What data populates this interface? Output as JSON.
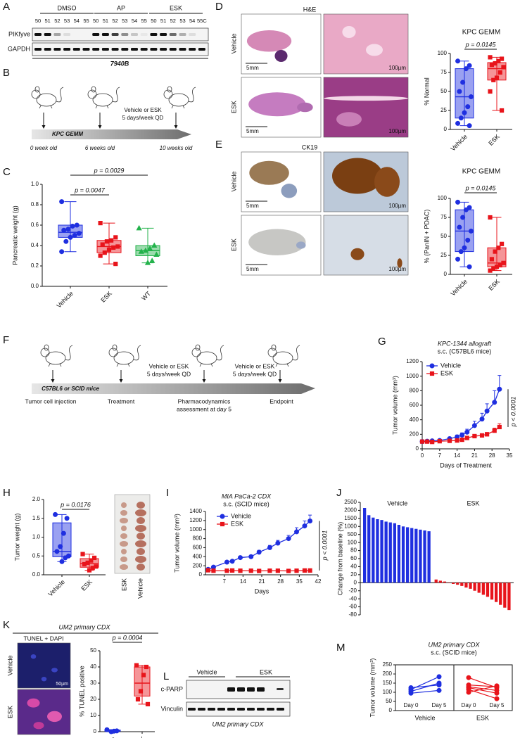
{
  "figure": {
    "A": {
      "letter": "A",
      "groups": [
        "DMSO",
        "AP",
        "ESK"
      ],
      "lanes": [
        "50",
        "51",
        "52",
        "53",
        "54",
        "55",
        "50",
        "51",
        "52",
        "53",
        "54",
        "55",
        "50",
        "51",
        "52",
        "53",
        "54",
        "55C"
      ],
      "proteins": [
        "PIKfyve",
        "GAPDH"
      ],
      "cell_line": "7940B"
    },
    "B": {
      "letter": "B",
      "model": "KPC GEMM",
      "treatment": [
        "Vehicle or ESK",
        "5 days/week QD"
      ],
      "timepoints": [
        "0 week old",
        "6 weeks old",
        "10 weeks old"
      ]
    },
    "C": {
      "letter": "C",
      "chart": {
        "type": "box",
        "ylabel": "Pancreatic weight (g)",
        "ylim": [
          0,
          1.0
        ],
        "yticks": [
          {
            "value": 0,
            "label": "0.0"
          },
          0.2,
          0.4,
          0.6,
          0.8,
          {
            "value": 1.0,
            "label": "1.0"
          }
        ],
        "categories": [
          "Vehicle",
          "ESK",
          "WT"
        ],
        "series": [
          {
            "color": "#1f2fe0",
            "marker": "circle",
            "box": [
              0.34,
              0.48,
              0.53,
              0.6,
              0.83
            ],
            "points": [
              0.83,
              0.6,
              0.59,
              0.56,
              0.55,
              0.52,
              0.5,
              0.48,
              0.44,
              0.34
            ]
          },
          {
            "color": "#e8141b",
            "marker": "square",
            "box": [
              0.22,
              0.33,
              0.39,
              0.45,
              0.62
            ],
            "points": [
              0.62,
              0.48,
              0.45,
              0.44,
              0.41,
              0.39,
              0.38,
              0.36,
              0.33,
              0.3,
              0.22
            ]
          },
          {
            "color": "#23b24b",
            "marker": "triangle",
            "box": [
              0.23,
              0.3,
              0.35,
              0.4,
              0.57
            ],
            "points": [
              0.57,
              0.4,
              0.37,
              0.35,
              0.34,
              0.31,
              0.25,
              0.23
            ]
          }
        ],
        "annotations": [
          "p = 0.0029",
          "p = 0.0047"
        ]
      }
    },
    "D": {
      "letter": "D",
      "stain": "H&E",
      "rows": [
        "Vehicle",
        "ESK"
      ],
      "scale_low": "5mm",
      "scale_high": "100µm",
      "chart": {
        "type": "box",
        "title": "KPC GEMM",
        "ylabel": "% Normal",
        "ylim": [
          0,
          100
        ],
        "yticks": [
          0,
          25,
          50,
          75,
          100
        ],
        "categories": [
          "Vehicle",
          "ESK"
        ],
        "series": [
          {
            "color": "#1f2fe0",
            "marker": "circle",
            "box": [
              5,
              15,
              43,
              80,
              90
            ],
            "points": [
              90,
              84,
              80,
              62,
              50,
              43,
              30,
              22,
              15,
              8,
              5
            ]
          },
          {
            "color": "#e8141b",
            "marker": "square",
            "box": [
              25,
              65,
              80,
              88,
              95
            ],
            "points": [
              95,
              93,
              90,
              87,
              85,
              82,
              75,
              68,
              65,
              50,
              25
            ]
          }
        ],
        "annotations": [
          "p = 0.0145"
        ]
      }
    },
    "E": {
      "letter": "E",
      "stain": "CK19",
      "rows": [
        "Vehicle",
        "ESK"
      ],
      "scale_low": "5mm",
      "scale_high": "100µm",
      "chart": {
        "type": "box",
        "title": "KPC GEMM",
        "ylabel": "% (PanIN + PDAC)",
        "ylim": [
          0,
          100
        ],
        "yticks": [
          0,
          25,
          50,
          75,
          100
        ],
        "categories": [
          "Vehicle",
          "ESK"
        ],
        "series": [
          {
            "color": "#1f2fe0",
            "marker": "circle",
            "box": [
              10,
              30,
              57,
              85,
              95
            ],
            "points": [
              95,
              88,
              85,
              75,
              62,
              57,
              45,
              35,
              30,
              20,
              10
            ]
          },
          {
            "color": "#e8141b",
            "marker": "square",
            "box": [
              5,
              10,
              15,
              35,
              75
            ],
            "points": [
              75,
              40,
              35,
              30,
              20,
              15,
              12,
              10,
              8,
              5
            ]
          }
        ],
        "annotations": [
          "p = 0.0145"
        ]
      }
    },
    "F": {
      "letter": "F",
      "host": "C57BL6 or SCID mice",
      "treatment": [
        "Vehicle or ESK",
        "5 days/week QD"
      ],
      "events": [
        "Tumor cell injection",
        "Treatment",
        "Pharmacodynamics",
        "assessment at day 5",
        "Endpoint"
      ]
    },
    "G": {
      "letter": "G",
      "chart": {
        "type": "line",
        "title": [
          "KPC-1344 allograft",
          "s.c. (C57BL6 mice)"
        ],
        "xlabel": "Days of Treatment",
        "ylabel": "Tumor volume (mm³)",
        "xlim": [
          0,
          35
        ],
        "xticks": [
          0,
          7,
          14,
          21,
          28,
          35
        ],
        "ylim": [
          0,
          1200
        ],
        "yticks": [
          0,
          200,
          400,
          600,
          800,
          1000,
          1200
        ],
        "series": [
          {
            "name": "Vehicle",
            "color": "#1f2fe0",
            "marker": "circle",
            "x": [
              0,
              2,
              4,
              7,
              11,
              14,
              16,
              18,
              21,
              24,
              26,
              29,
              31
            ],
            "values": [
              100,
              105,
              110,
              115,
              140,
              165,
              190,
              230,
              320,
              410,
              520,
              640,
              820
            ],
            "errors": [
              10,
              10,
              10,
              15,
              20,
              25,
              30,
              40,
              60,
              80,
              100,
              160,
              190
            ]
          },
          {
            "name": "ESK",
            "color": "#e8141b",
            "marker": "square",
            "x": [
              0,
              2,
              4,
              7,
              11,
              14,
              16,
              18,
              21,
              24,
              26,
              29,
              31
            ],
            "values": [
              100,
              100,
              95,
              105,
              110,
              115,
              125,
              150,
              175,
              185,
              200,
              250,
              300
            ],
            "errors": [
              8,
              8,
              8,
              10,
              10,
              12,
              12,
              15,
              20,
              20,
              25,
              35,
              45
            ]
          }
        ],
        "annotation": "p < 0.0001"
      }
    },
    "H": {
      "letter": "H",
      "photo_labels": [
        "ESK",
        "Vehicle"
      ],
      "chart": {
        "type": "box",
        "ylabel": "Tumor weight (g)",
        "ylim": [
          0,
          2.0
        ],
        "yticks": [
          {
            "value": 0,
            "label": "0.0"
          },
          0.5,
          {
            "value": 1.0,
            "label": "1.0"
          },
          1.5,
          {
            "value": 2.0,
            "label": "2.0"
          }
        ],
        "categories": [
          "Vehicle",
          "ESK"
        ],
        "series": [
          {
            "color": "#1f2fe0",
            "marker": "circle",
            "box": [
              0.35,
              0.48,
              0.62,
              1.38,
              1.6
            ],
            "points": [
              1.6,
              1.5,
              1.1,
              0.75,
              0.62,
              0.5,
              0.45,
              0.35
            ]
          },
          {
            "color": "#e8141b",
            "marker": "square",
            "box": [
              0.12,
              0.2,
              0.3,
              0.43,
              0.55
            ],
            "points": [
              0.55,
              0.45,
              0.38,
              0.32,
              0.28,
              0.22,
              0.18,
              0.12
            ]
          }
        ],
        "annotations": [
          "p = 0.0176"
        ]
      }
    },
    "I": {
      "letter": "I",
      "chart": {
        "type": "line",
        "title": [
          "MIA PaCa-2 CDX",
          "s.c. (SCID mice)"
        ],
        "xlabel": "Days",
        "ylabel": "Tumor volume (mm³)",
        "xlim": [
          0,
          42
        ],
        "xticks": [
          7,
          14,
          21,
          28,
          35,
          42
        ],
        "ylim": [
          0,
          1400
        ],
        "yticks": [
          0,
          200,
          400,
          600,
          800,
          1000,
          1200,
          1400
        ],
        "series": [
          {
            "name": "Vehicle",
            "color": "#1f2fe0",
            "marker": "circle",
            "x": [
              1,
              3,
              8,
              10,
              13,
              17,
              20,
              24,
              27,
              31,
              34,
              37,
              39
            ],
            "values": [
              120,
              170,
              280,
              300,
              380,
              400,
              500,
              600,
              700,
              800,
              950,
              1080,
              1190
            ],
            "errors": [
              10,
              15,
              20,
              25,
              30,
              30,
              40,
              50,
              60,
              70,
              90,
              110,
              130
            ]
          },
          {
            "name": "ESK",
            "color": "#e8141b",
            "marker": "square",
            "x": [
              1,
              3,
              8,
              10,
              13,
              17,
              20,
              24,
              27,
              31,
              34,
              37,
              39
            ],
            "values": [
              100,
              90,
              90,
              95,
              90,
              90,
              85,
              90,
              90,
              85,
              90,
              95,
              95
            ],
            "errors": [
              5,
              5,
              5,
              5,
              5,
              5,
              5,
              5,
              5,
              5,
              5,
              5,
              5
            ]
          }
        ],
        "annotation": "p < 0.0001"
      }
    },
    "J": {
      "letter": "J",
      "chart": {
        "type": "waterfall",
        "ylabel": "Change from baseline (%)",
        "ylim": [
          -80,
          2500
        ],
        "yticks": [
          2500,
          2000,
          1500,
          1000,
          500,
          100,
          80,
          60,
          40,
          20,
          0,
          -20,
          -40,
          -60,
          -80
        ],
        "groups": [
          "Vehicle",
          "ESK"
        ],
        "series": [
          {
            "color": "#1f2fe0",
            "values": [
              2150,
              1700,
              1550,
              1450,
              1400,
              1300,
              1250,
              1200,
              1100,
              1000,
              950,
              900,
              850,
              800,
              750,
              700
            ]
          },
          {
            "color": "#e8141b",
            "values": [
              8,
              5,
              3,
              0,
              -3,
              -5,
              -8,
              -12,
              -15,
              -20,
              -25,
              -30,
              -35,
              -42,
              -48,
              -55,
              -62,
              -68
            ]
          }
        ]
      }
    },
    "K": {
      "letter": "K",
      "model": "UM2 primary CDX",
      "stain": "TUNEL + DAPI",
      "scale": "50µm",
      "rows": [
        "Vehicle",
        "ESK"
      ],
      "chart": {
        "type": "box",
        "ylabel": "% TUNEL positive",
        "ylim": [
          0,
          50
        ],
        "yticks": [
          0,
          10,
          20,
          30,
          40,
          50
        ],
        "categories": [
          "Vehicle",
          "ESK"
        ],
        "series": [
          {
            "color": "#1f2fe0",
            "marker": "circle",
            "box": [
              0,
              0.3,
              0.5,
              1,
              1.2
            ],
            "points": [
              1.2,
              0.5,
              0.3,
              0
            ]
          },
          {
            "color": "#e8141b",
            "marker": "square",
            "box": [
              17,
              22,
              30,
              40,
              41
            ],
            "points": [
              41,
              40,
              35,
              25,
              20,
              17
            ]
          }
        ],
        "annotations": [
          "p = 0.0004"
        ]
      }
    },
    "L": {
      "letter": "L",
      "groups": [
        "Vehicle",
        "ESK"
      ],
      "proteins": [
        "c-PARP",
        "Vinculin"
      ],
      "model": "UM2 primary CDX"
    },
    "M": {
      "letter": "M",
      "chart": {
        "type": "paired",
        "title": [
          "UM2 primary CDX",
          "s.c. (SCID mice)"
        ],
        "ylabel": "Tumor volume (mm³)",
        "ylim": [
          0,
          250
        ],
        "yticks": [
          0,
          50,
          100,
          150,
          200,
          250
        ],
        "timepoints": [
          "Day 0",
          "Day 5"
        ],
        "groups": [
          "Vehicle",
          "ESK"
        ],
        "series": [
          {
            "color": "#1f2fe0",
            "day0": [
              95,
              105,
              115,
              125
            ],
            "day5": [
              110,
              150,
              185,
              140
            ]
          },
          {
            "color": "#e8141b",
            "day0": [
              180,
              140,
              130,
              125,
              115,
              100
            ],
            "day5": [
              125,
              130,
              110,
              95,
              65,
              135
            ]
          }
        ]
      }
    }
  }
}
